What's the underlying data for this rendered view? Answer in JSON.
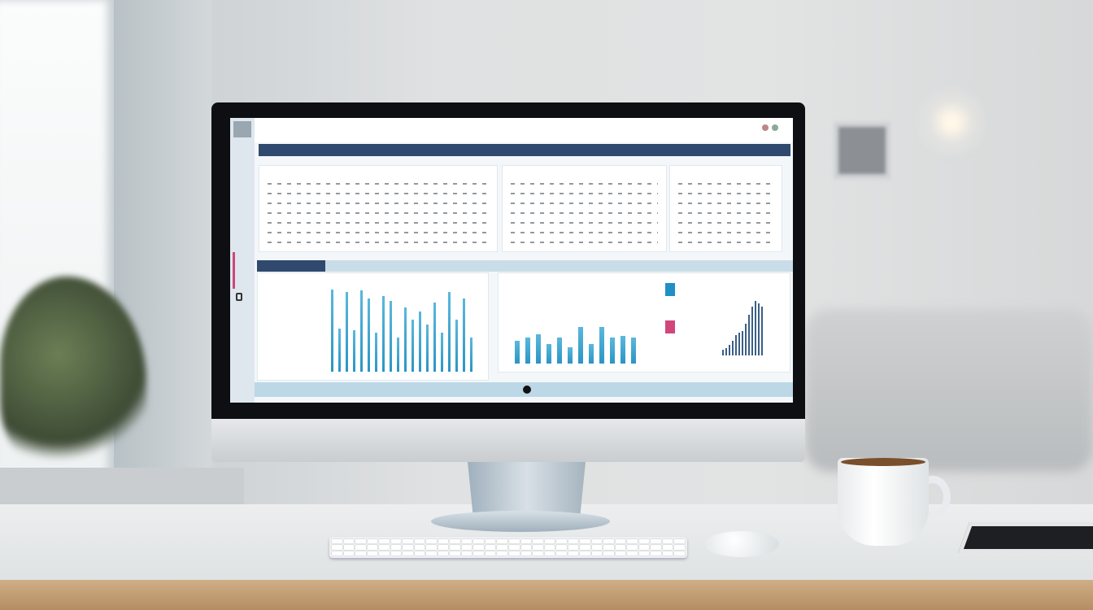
{
  "scene": {
    "colors": {
      "nav_bar": "#2f4a6e",
      "bar_fill": "#2b95c4",
      "footer_bar": "#bcd8e6",
      "accent_pink": "#d1467a",
      "accent_blue": "#1f8fc6",
      "desk_wood": "#c19a70"
    },
    "objects": [
      "monitor",
      "keyboard",
      "mouse",
      "coffee-cup",
      "tablet",
      "plant",
      "window",
      "pendant-lamp"
    ]
  },
  "chart_data": [
    {
      "type": "bar",
      "values": [
        0.95,
        0.5,
        0.92,
        0.48,
        0.94,
        0.85,
        0.45,
        0.88,
        0.82,
        0.4,
        0.75,
        0.6,
        0.7,
        0.55,
        0.8,
        0.45,
        0.92,
        0.6,
        0.85,
        0.4
      ]
    },
    {
      "type": "bar",
      "values": [
        0.35,
        0.4,
        0.45,
        0.3,
        0.4,
        0.25,
        0.55,
        0.3,
        0.55,
        0.4,
        0.42,
        0.4
      ]
    },
    {
      "type": "bar",
      "values": [
        0.1,
        0.12,
        0.18,
        0.25,
        0.35,
        0.4,
        0.42,
        0.55,
        0.7,
        0.85,
        0.95,
        0.9,
        0.85
      ]
    }
  ]
}
